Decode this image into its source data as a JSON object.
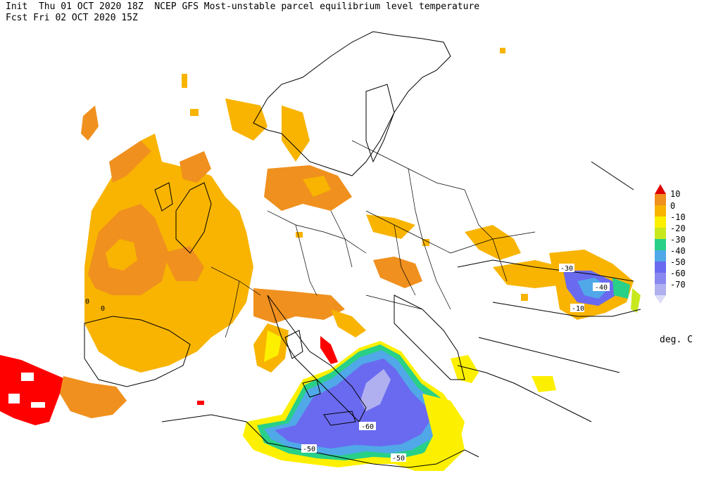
{
  "header": {
    "line1": "Init  Thu 01 OCT 2020 18Z  NCEP GFS Most-unstable parcel equilibrium level temperature",
    "line2": "Fcst Fri 02 OCT 2020 15Z"
  },
  "colorbar": {
    "units": "deg. C",
    "labels": [
      "10",
      "0",
      "-10",
      "-20",
      "-30",
      "-40",
      "-50",
      "-60",
      "-70"
    ],
    "colors": [
      "#e8e812",
      "#f8b400",
      "#f0a21e",
      "#fce80a",
      "#c8e81e",
      "#28d088",
      "#50a8e8",
      "#6a6af0",
      "#a0a0f0",
      "#d0d0f8"
    ],
    "top_color": "#e00000",
    "bottom_color": "#dcdcf8"
  },
  "contour_labels": [
    "-60",
    "-50",
    "-50",
    "-40",
    "-30",
    "-10",
    "0",
    "0"
  ],
  "legend_fill": {
    "orange": "#f0901e",
    "light_orange": "#f8b400",
    "yellow": "#fcf000",
    "blue": "#6a6af0",
    "light_blue": "#b0b0f0",
    "red": "#ff0000",
    "green": "#28d088"
  }
}
